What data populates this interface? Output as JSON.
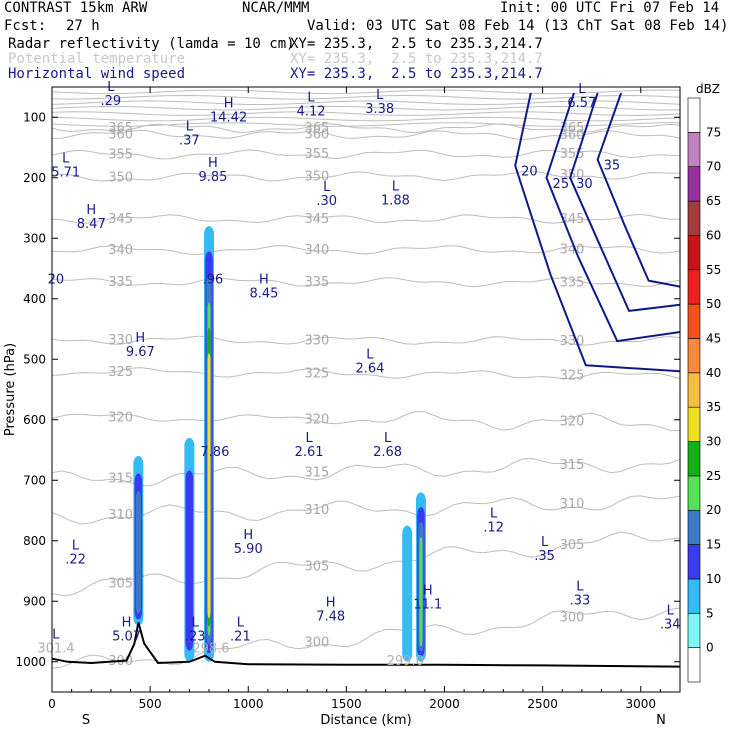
{
  "header": {
    "model": "CONTRAST 15km ARW",
    "center": "NCAR/MMM",
    "init": "Init: 00 UTC Fri 07 Feb 14",
    "fcst_label": "Fcst:",
    "fcst_value": "27 h",
    "valid": "Valid: 03 UTC Sat 08 Feb 14 (13 ChT Sat 08 Feb 14)",
    "fields": [
      {
        "name": "Radar reflectivity (lamda = 10 cm)",
        "xy": "XY= 235.3,  2.5 to 235.3,214.7",
        "color": "#000000"
      },
      {
        "name": "Potential temperature",
        "xy": "XY= 235.3,  2.5 to 235.3,214.7",
        "color": "#c8c8c8"
      },
      {
        "name": "Horizontal wind speed",
        "xy": "XY= 235.3,  2.5 to 235.3,214.7",
        "color": "#1a1a8c"
      }
    ]
  },
  "chart_data": {
    "type": "cross-section",
    "xlabel": "Distance (km)",
    "ylabel": "Pressure (hPa)",
    "xlim": [
      0,
      3200
    ],
    "ylim": [
      1050,
      50
    ],
    "x_ticks": [
      0,
      500,
      1000,
      1500,
      2000,
      2500,
      3000
    ],
    "y_ticks": [
      100,
      200,
      300,
      400,
      500,
      600,
      700,
      800,
      900,
      1000
    ],
    "left_end": "S",
    "right_end": "N",
    "colorbar": {
      "units": "dBZ",
      "levels": [
        0,
        5,
        10,
        15,
        20,
        25,
        30,
        35,
        40,
        45,
        50,
        55,
        60,
        65,
        70,
        75
      ],
      "colors": [
        "#ffffff",
        "#7ff5f5",
        "#33bbf5",
        "#3a3af0",
        "#3b7ac4",
        "#55e055",
        "#16b016",
        "#f0e11e",
        "#f5be3c",
        "#f58a3c",
        "#f5501e",
        "#f01e1e",
        "#c81414",
        "#a03c3c",
        "#9632a0",
        "#be82be",
        "#ffffff"
      ]
    },
    "theta_isentropes": [
      {
        "label": "365",
        "p_left": 118,
        "p_right": 118
      },
      {
        "label": "360",
        "p_left": 128,
        "p_right": 130
      },
      {
        "label": "355",
        "p_left": 162,
        "p_right": 160
      },
      {
        "label": "350",
        "p_left": 200,
        "p_right": 195
      },
      {
        "label": "345",
        "p_left": 268,
        "p_right": 268
      },
      {
        "label": "340",
        "p_left": 320,
        "p_right": 318
      },
      {
        "label": "335",
        "p_left": 372,
        "p_right": 373
      },
      {
        "label": "330",
        "p_left": 468,
        "p_right": 470
      },
      {
        "label": "325",
        "p_left": 520,
        "p_right": 528
      },
      {
        "label": "320",
        "p_left": 595,
        "p_right": 605
      },
      {
        "label": "315",
        "p_left": 700,
        "p_right": 670
      },
      {
        "label": "310",
        "p_left": 760,
        "p_right": 735
      },
      {
        "label": "305",
        "p_left": 880,
        "p_right": 792
      },
      {
        "label": "300",
        "p_left": 1010,
        "p_right": 910
      }
    ],
    "wind_speed_contours": [
      {
        "label": "20",
        "points": [
          [
            2440,
            60
          ],
          [
            2360,
            180
          ],
          [
            2540,
            360
          ],
          [
            2720,
            510
          ],
          [
            3200,
            520
          ]
        ]
      },
      {
        "label": "25",
        "points": [
          [
            2660,
            60
          ],
          [
            2520,
            200
          ],
          [
            2680,
            330
          ],
          [
            2880,
            470
          ],
          [
            3200,
            455
          ]
        ]
      },
      {
        "label": "30",
        "points": [
          [
            2780,
            60
          ],
          [
            2640,
            200
          ],
          [
            2790,
            310
          ],
          [
            2940,
            420
          ],
          [
            3200,
            410
          ]
        ]
      },
      {
        "label": "35",
        "points": [
          [
            2900,
            60
          ],
          [
            2780,
            170
          ],
          [
            2920,
            280
          ],
          [
            3040,
            370
          ],
          [
            3200,
            380
          ]
        ]
      }
    ],
    "reflectivity_cells": [
      {
        "x": 440,
        "p_top": 660,
        "p_bottom": 940,
        "max_dbz": 17
      },
      {
        "x": 700,
        "p_top": 630,
        "p_bottom": 1000,
        "max_dbz": 12
      },
      {
        "x": 800,
        "p_top": 280,
        "p_bottom": 1000,
        "max_dbz": 30
      },
      {
        "x": 1810,
        "p_top": 775,
        "p_bottom": 1000,
        "max_dbz": 7
      },
      {
        "x": 1880,
        "p_top": 720,
        "p_bottom": 1000,
        "max_dbz": 20
      }
    ],
    "terrain": [
      [
        0,
        995
      ],
      [
        80,
        1000
      ],
      [
        200,
        1002
      ],
      [
        380,
        998
      ],
      [
        420,
        970
      ],
      [
        440,
        935
      ],
      [
        470,
        970
      ],
      [
        540,
        1002
      ],
      [
        700,
        1000
      ],
      [
        780,
        990
      ],
      [
        830,
        1000
      ],
      [
        1000,
        1004
      ],
      [
        1500,
        1005
      ],
      [
        2000,
        1005
      ],
      [
        2500,
        1006
      ],
      [
        3200,
        1008
      ]
    ],
    "annotations": [
      {
        "hl": "L",
        "value": ".29",
        "x": 300,
        "p": 80
      },
      {
        "hl": "H",
        "value": "14.42",
        "x": 900,
        "p": 107
      },
      {
        "hl": "L",
        "value": "4.12",
        "x": 1320,
        "p": 97
      },
      {
        "hl": "L",
        "value": "3.38",
        "x": 1670,
        "p": 93
      },
      {
        "hl": "L",
        "value": "6.57",
        "x": 2700,
        "p": 83
      },
      {
        "hl": "L",
        "value": ".37",
        "x": 700,
        "p": 145
      },
      {
        "hl": "L",
        "value": "5.71",
        "x": 70,
        "p": 198
      },
      {
        "hl": "H",
        "value": "9.85",
        "x": 820,
        "p": 205
      },
      {
        "hl": "L",
        "value": ".30",
        "x": 1400,
        "p": 245
      },
      {
        "hl": "L",
        "value": "1.88",
        "x": 1750,
        "p": 244
      },
      {
        "hl": "H",
        "value": "8.47",
        "x": 200,
        "p": 283
      },
      {
        "hl": "",
        "value": "20",
        "x": 20,
        "p": 375
      },
      {
        "hl": "",
        "value": ".96",
        "x": 820,
        "p": 375
      },
      {
        "hl": "H",
        "value": "8.45",
        "x": 1080,
        "p": 398
      },
      {
        "hl": "H",
        "value": "9.67",
        "x": 450,
        "p": 495
      },
      {
        "hl": "L",
        "value": "2.64",
        "x": 1620,
        "p": 522
      },
      {
        "hl": "L",
        "value": "2.61",
        "x": 1310,
        "p": 660
      },
      {
        "hl": "L",
        "value": "2.68",
        "x": 1710,
        "p": 660
      },
      {
        "hl": "",
        "value": "7.86",
        "x": 830,
        "p": 660
      },
      {
        "hl": "L",
        "value": ".12",
        "x": 2250,
        "p": 785
      },
      {
        "hl": "H",
        "value": "5.90",
        "x": 1000,
        "p": 820
      },
      {
        "hl": "L",
        "value": ".22",
        "x": 120,
        "p": 838
      },
      {
        "hl": "L",
        "value": ".35",
        "x": 2510,
        "p": 832
      },
      {
        "hl": "H",
        "value": "11.1",
        "x": 1915,
        "p": 912
      },
      {
        "hl": "H",
        "value": "7.48",
        "x": 1420,
        "p": 932
      },
      {
        "hl": "L",
        "value": ".33",
        "x": 2690,
        "p": 905
      },
      {
        "hl": "H",
        "value": "5.07",
        "x": 380,
        "p": 965
      },
      {
        "hl": "L",
        "value": ".23",
        "x": 730,
        "p": 965
      },
      {
        "hl": "L",
        "value": ".21",
        "x": 960,
        "p": 965
      },
      {
        "hl": "L",
        "value": ".34",
        "x": 3150,
        "p": 945
      },
      {
        "hl": "L",
        "value": "301.4",
        "x": 20,
        "p": 985
      },
      {
        "hl": "",
        "value": "298.6",
        "x": 810,
        "p": 985
      },
      {
        "hl": "",
        "value": "299.0",
        "x": 1800,
        "p": 1005
      }
    ]
  }
}
